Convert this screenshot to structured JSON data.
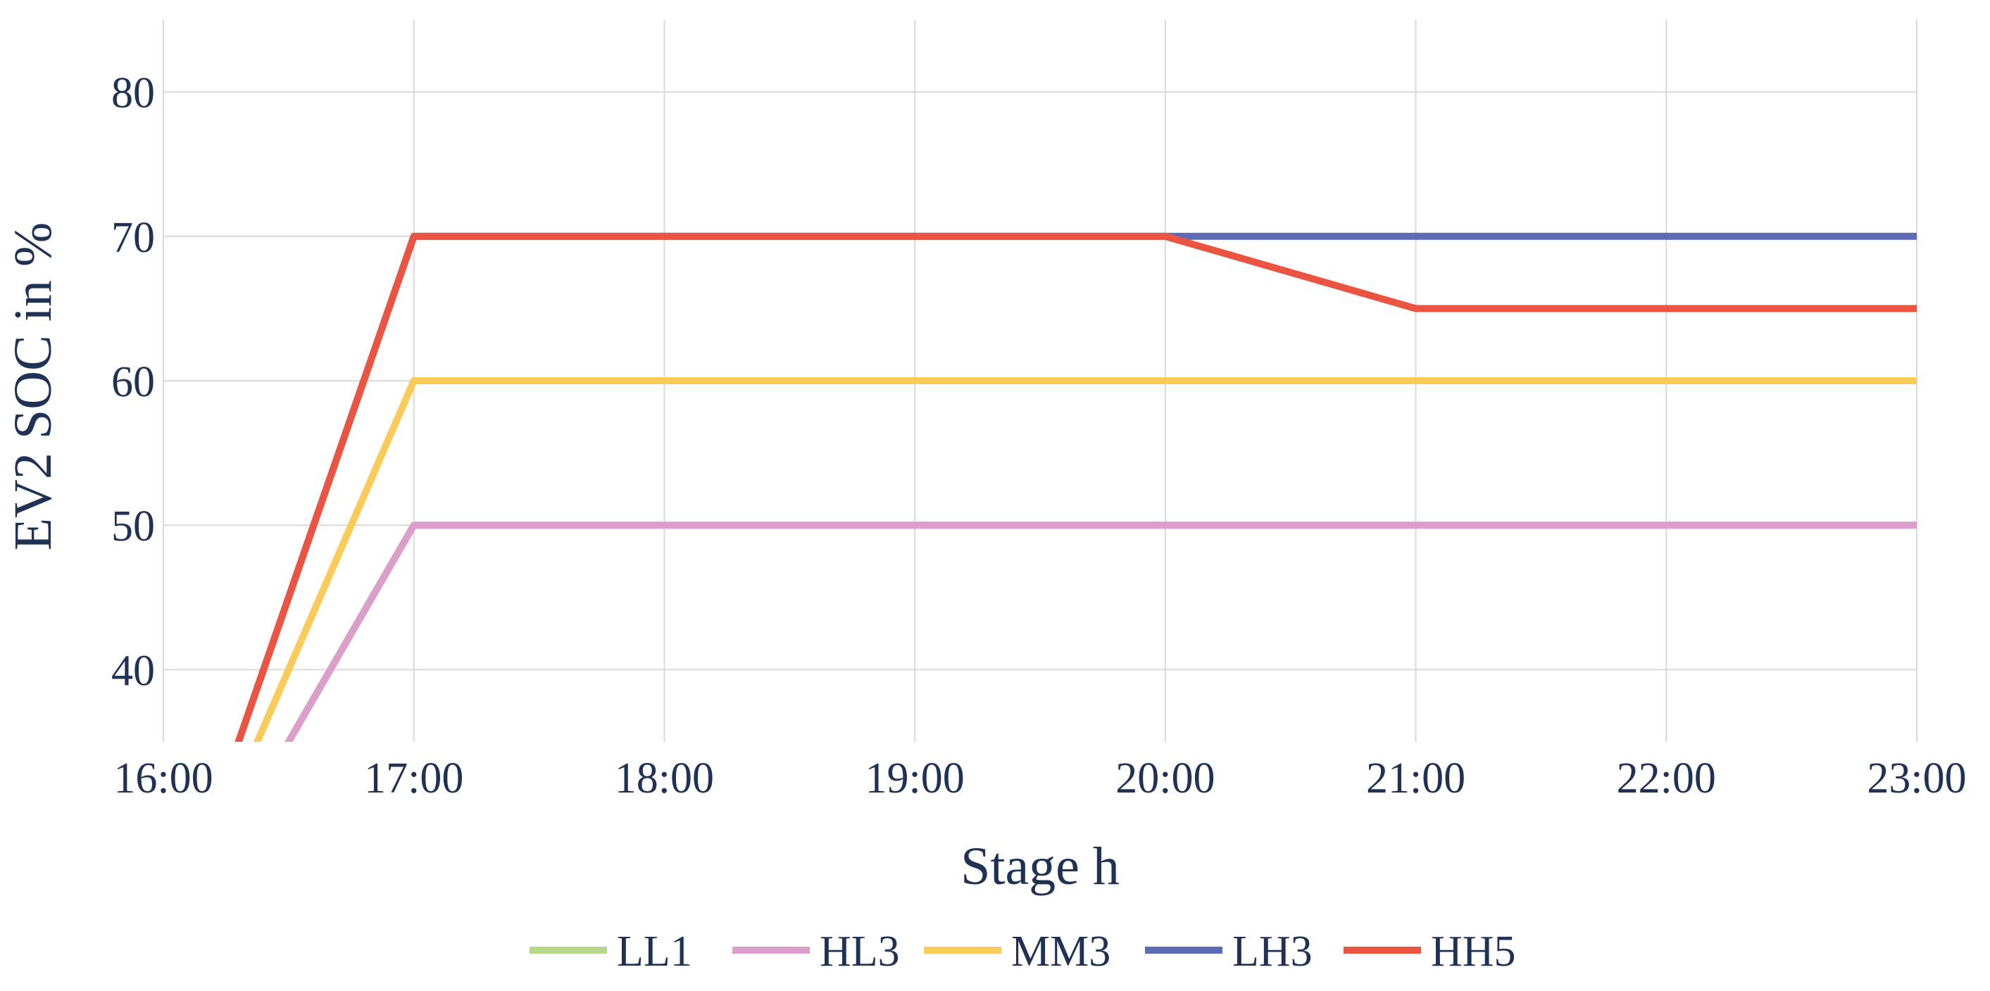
{
  "chart_data": {
    "type": "line",
    "xlabel": "Stage h",
    "ylabel": "EV2 SOC in %",
    "x_ticks": [
      "16:00",
      "17:00",
      "18:00",
      "19:00",
      "20:00",
      "21:00",
      "22:00",
      "23:00"
    ],
    "y_ticks": [
      40,
      50,
      60,
      70,
      80
    ],
    "xlim": [
      16,
      23
    ],
    "ylim": [
      35,
      85
    ],
    "grid": true,
    "legend_position": "bottom-center",
    "series": [
      {
        "name": "LL1",
        "color": "#b5d88a",
        "x": [
          16,
          17,
          18,
          19,
          20,
          21,
          22,
          23
        ],
        "y": [
          20,
          50,
          50,
          50,
          50,
          50,
          50,
          50
        ]
      },
      {
        "name": "HL3",
        "color": "#dc9ecb",
        "x": [
          16,
          17,
          18,
          19,
          20,
          21,
          22,
          23
        ],
        "y": [
          20,
          50,
          50,
          50,
          50,
          50,
          50,
          50
        ]
      },
      {
        "name": "MM3",
        "color": "#fbcb5a",
        "x": [
          16,
          17,
          18,
          19,
          20,
          21,
          22,
          23
        ],
        "y": [
          20,
          60,
          60,
          60,
          60,
          60,
          60,
          60
        ]
      },
      {
        "name": "LH3",
        "color": "#5b6bb5",
        "x": [
          16,
          17,
          18,
          19,
          20,
          21,
          22,
          23
        ],
        "y": [
          20,
          70,
          70,
          70,
          70,
          70,
          70,
          70
        ]
      },
      {
        "name": "HH5",
        "color": "#ea5440",
        "x": [
          16,
          17,
          18,
          19,
          20,
          21,
          22,
          23
        ],
        "y": [
          20,
          70,
          70,
          70,
          70,
          65,
          65,
          65
        ]
      }
    ]
  }
}
